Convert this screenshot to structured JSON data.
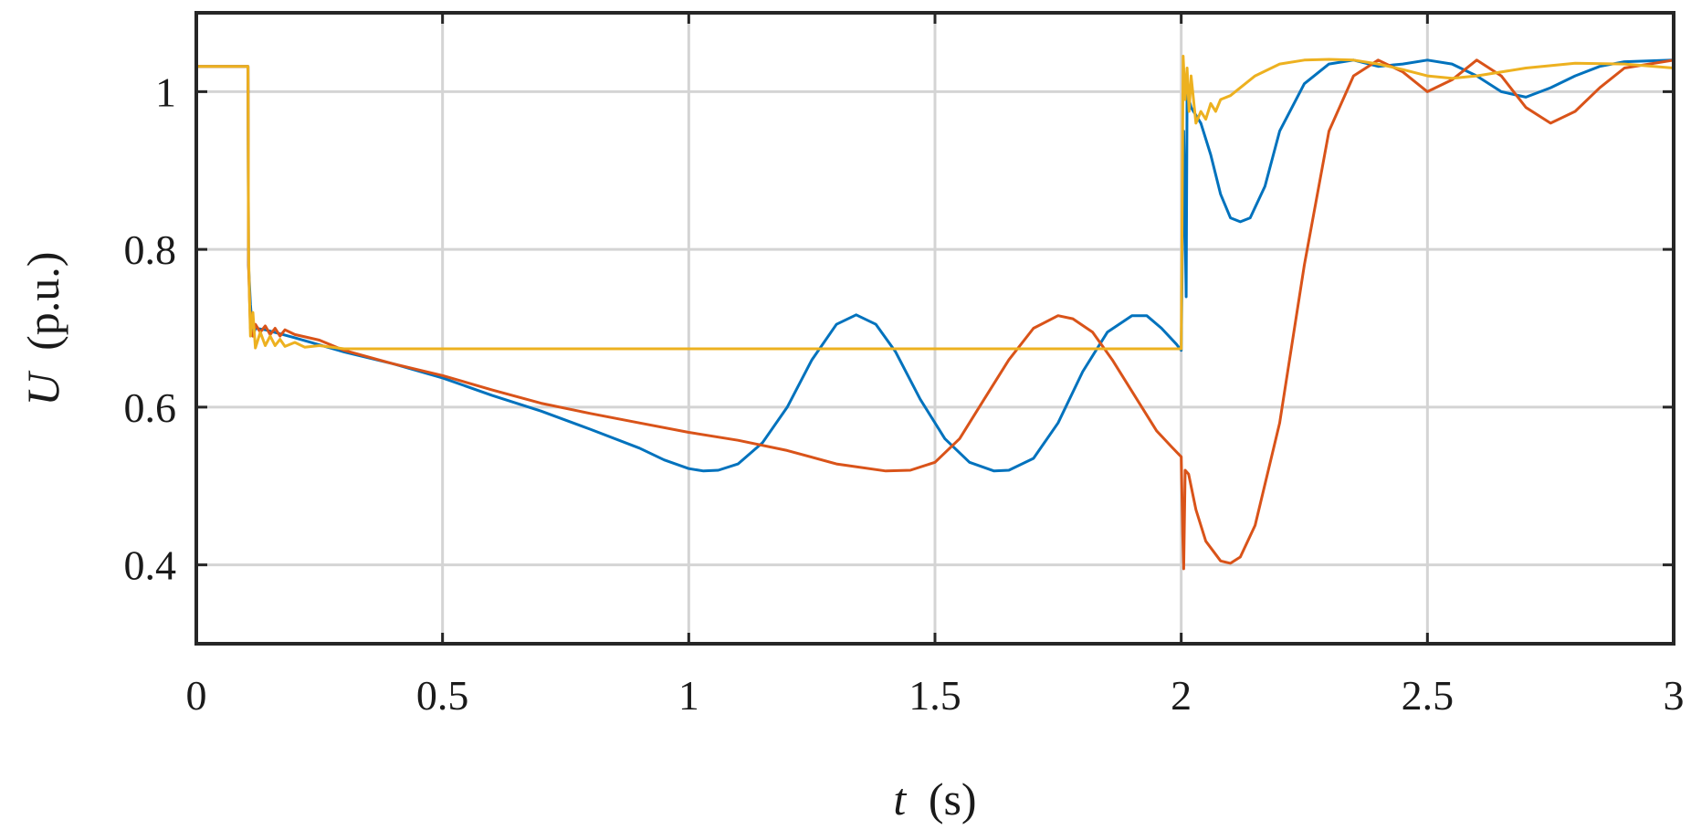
{
  "chart_data": {
    "type": "line",
    "title": "",
    "xlabel": {
      "symbol": "t",
      "unit": "(s)"
    },
    "ylabel": {
      "symbol": "U",
      "unit": "(p.u.)"
    },
    "xlim": [
      0,
      3
    ],
    "ylim": [
      0.3,
      1.1
    ],
    "xticks": [
      0,
      0.5,
      1,
      1.5,
      2,
      2.5,
      3
    ],
    "xtick_labels": [
      "0",
      "0.5",
      "1",
      "1.5",
      "2",
      "2.5",
      "3"
    ],
    "yticks": [
      0.4,
      0.6,
      0.8,
      1.0
    ],
    "ytick_labels": [
      "0.4",
      "0.6",
      "0.8",
      "1"
    ],
    "grid": true,
    "legend": "none",
    "series": [
      {
        "color": "#0072BD",
        "points": [
          [
            0,
            1.032
          ],
          [
            0.105,
            1.032
          ],
          [
            0.106,
            0.78
          ],
          [
            0.11,
            0.73
          ],
          [
            0.115,
            0.69
          ],
          [
            0.12,
            0.7
          ],
          [
            0.14,
            0.698
          ],
          [
            0.2,
            0.688
          ],
          [
            0.3,
            0.67
          ],
          [
            0.4,
            0.655
          ],
          [
            0.5,
            0.637
          ],
          [
            0.6,
            0.615
          ],
          [
            0.7,
            0.595
          ],
          [
            0.8,
            0.572
          ],
          [
            0.9,
            0.548
          ],
          [
            0.95,
            0.533
          ],
          [
            1.0,
            0.522
          ],
          [
            1.03,
            0.519
          ],
          [
            1.06,
            0.52
          ],
          [
            1.1,
            0.528
          ],
          [
            1.15,
            0.555
          ],
          [
            1.2,
            0.6
          ],
          [
            1.25,
            0.66
          ],
          [
            1.3,
            0.705
          ],
          [
            1.34,
            0.717
          ],
          [
            1.38,
            0.705
          ],
          [
            1.42,
            0.67
          ],
          [
            1.47,
            0.61
          ],
          [
            1.52,
            0.56
          ],
          [
            1.57,
            0.53
          ],
          [
            1.62,
            0.519
          ],
          [
            1.65,
            0.52
          ],
          [
            1.7,
            0.535
          ],
          [
            1.75,
            0.58
          ],
          [
            1.8,
            0.645
          ],
          [
            1.85,
            0.695
          ],
          [
            1.9,
            0.716
          ],
          [
            1.93,
            0.716
          ],
          [
            1.96,
            0.7
          ],
          [
            1.99,
            0.68
          ],
          [
            2.0,
            0.672
          ],
          [
            2.005,
            0.95
          ],
          [
            2.01,
            0.74
          ],
          [
            2.012,
            1.0
          ],
          [
            2.02,
            0.98
          ],
          [
            2.04,
            0.96
          ],
          [
            2.06,
            0.92
          ],
          [
            2.08,
            0.87
          ],
          [
            2.1,
            0.84
          ],
          [
            2.12,
            0.835
          ],
          [
            2.14,
            0.84
          ],
          [
            2.17,
            0.88
          ],
          [
            2.2,
            0.95
          ],
          [
            2.25,
            1.01
          ],
          [
            2.3,
            1.035
          ],
          [
            2.35,
            1.04
          ],
          [
            2.4,
            1.032
          ],
          [
            2.45,
            1.035
          ],
          [
            2.5,
            1.04
          ],
          [
            2.55,
            1.035
          ],
          [
            2.6,
            1.02
          ],
          [
            2.65,
            1.0
          ],
          [
            2.7,
            0.993
          ],
          [
            2.75,
            1.005
          ],
          [
            2.8,
            1.02
          ],
          [
            2.85,
            1.032
          ],
          [
            2.9,
            1.038
          ],
          [
            3.0,
            1.04
          ]
        ]
      },
      {
        "color": "#D95319",
        "points": [
          [
            0,
            1.032
          ],
          [
            0.105,
            1.032
          ],
          [
            0.106,
            0.78
          ],
          [
            0.11,
            0.7
          ],
          [
            0.115,
            0.69
          ],
          [
            0.12,
            0.705
          ],
          [
            0.13,
            0.695
          ],
          [
            0.14,
            0.703
          ],
          [
            0.15,
            0.692
          ],
          [
            0.16,
            0.7
          ],
          [
            0.17,
            0.69
          ],
          [
            0.18,
            0.698
          ],
          [
            0.2,
            0.692
          ],
          [
            0.25,
            0.685
          ],
          [
            0.3,
            0.672
          ],
          [
            0.4,
            0.655
          ],
          [
            0.5,
            0.64
          ],
          [
            0.6,
            0.622
          ],
          [
            0.7,
            0.605
          ],
          [
            0.8,
            0.592
          ],
          [
            0.9,
            0.58
          ],
          [
            1.0,
            0.568
          ],
          [
            1.1,
            0.558
          ],
          [
            1.2,
            0.545
          ],
          [
            1.3,
            0.528
          ],
          [
            1.4,
            0.519
          ],
          [
            1.45,
            0.52
          ],
          [
            1.5,
            0.53
          ],
          [
            1.55,
            0.56
          ],
          [
            1.6,
            0.61
          ],
          [
            1.65,
            0.66
          ],
          [
            1.7,
            0.7
          ],
          [
            1.75,
            0.716
          ],
          [
            1.78,
            0.712
          ],
          [
            1.82,
            0.695
          ],
          [
            1.86,
            0.66
          ],
          [
            1.9,
            0.62
          ],
          [
            1.95,
            0.57
          ],
          [
            1.98,
            0.55
          ],
          [
            2.0,
            0.537
          ],
          [
            2.003,
            0.44
          ],
          [
            2.005,
            0.395
          ],
          [
            2.008,
            0.52
          ],
          [
            2.015,
            0.515
          ],
          [
            2.03,
            0.47
          ],
          [
            2.05,
            0.43
          ],
          [
            2.08,
            0.405
          ],
          [
            2.1,
            0.402
          ],
          [
            2.12,
            0.41
          ],
          [
            2.15,
            0.45
          ],
          [
            2.2,
            0.58
          ],
          [
            2.25,
            0.78
          ],
          [
            2.3,
            0.95
          ],
          [
            2.35,
            1.02
          ],
          [
            2.4,
            1.04
          ],
          [
            2.45,
            1.025
          ],
          [
            2.5,
            1.0
          ],
          [
            2.55,
            1.015
          ],
          [
            2.6,
            1.04
          ],
          [
            2.65,
            1.02
          ],
          [
            2.7,
            0.98
          ],
          [
            2.75,
            0.96
          ],
          [
            2.8,
            0.975
          ],
          [
            2.85,
            1.005
          ],
          [
            2.9,
            1.03
          ],
          [
            3.0,
            1.04
          ]
        ]
      },
      {
        "color": "#EDB120",
        "points": [
          [
            0,
            1.032
          ],
          [
            0.105,
            1.032
          ],
          [
            0.106,
            0.8
          ],
          [
            0.108,
            0.74
          ],
          [
            0.11,
            0.69
          ],
          [
            0.115,
            0.72
          ],
          [
            0.12,
            0.675
          ],
          [
            0.13,
            0.695
          ],
          [
            0.14,
            0.678
          ],
          [
            0.15,
            0.69
          ],
          [
            0.16,
            0.678
          ],
          [
            0.17,
            0.686
          ],
          [
            0.18,
            0.677
          ],
          [
            0.2,
            0.682
          ],
          [
            0.22,
            0.676
          ],
          [
            0.25,
            0.678
          ],
          [
            0.3,
            0.674
          ],
          [
            1.0,
            0.674
          ],
          [
            1.5,
            0.674
          ],
          [
            1.9,
            0.674
          ],
          [
            2.0,
            0.674
          ],
          [
            2.004,
            1.045
          ],
          [
            2.008,
            0.99
          ],
          [
            2.012,
            1.03
          ],
          [
            2.016,
            0.975
          ],
          [
            2.02,
            1.02
          ],
          [
            2.03,
            0.96
          ],
          [
            2.04,
            0.975
          ],
          [
            2.05,
            0.965
          ],
          [
            2.06,
            0.985
          ],
          [
            2.07,
            0.975
          ],
          [
            2.08,
            0.99
          ],
          [
            2.1,
            0.995
          ],
          [
            2.15,
            1.02
          ],
          [
            2.2,
            1.035
          ],
          [
            2.25,
            1.04
          ],
          [
            2.3,
            1.041
          ],
          [
            2.35,
            1.04
          ],
          [
            2.4,
            1.035
          ],
          [
            2.45,
            1.028
          ],
          [
            2.5,
            1.02
          ],
          [
            2.55,
            1.017
          ],
          [
            2.6,
            1.02
          ],
          [
            2.7,
            1.03
          ],
          [
            2.8,
            1.036
          ],
          [
            2.9,
            1.035
          ],
          [
            3.0,
            1.03
          ]
        ]
      }
    ]
  }
}
